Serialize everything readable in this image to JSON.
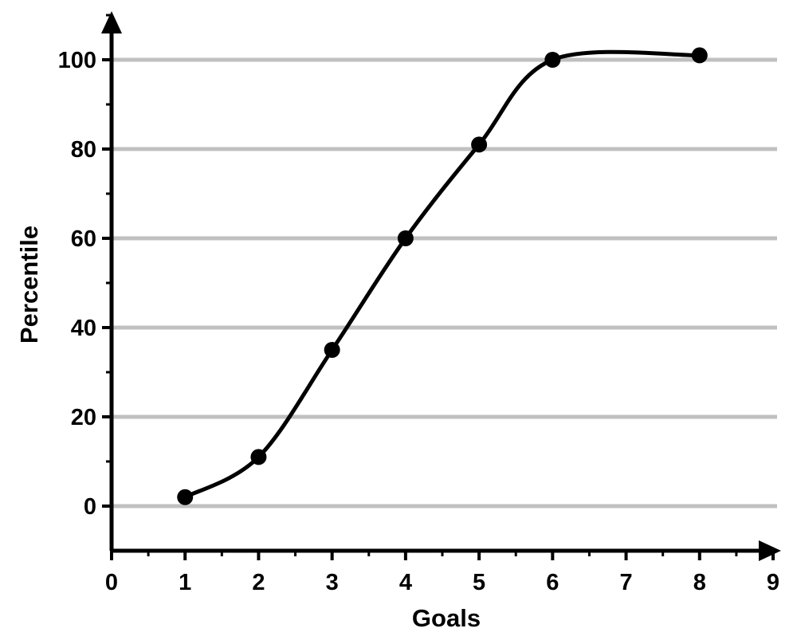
{
  "chart_data": {
    "type": "line",
    "title": "",
    "xlabel": "Goals",
    "ylabel": "Percentile",
    "xlim": [
      0,
      9
    ],
    "ylim": [
      -10,
      110
    ],
    "x_ticks": [
      0,
      1,
      2,
      3,
      4,
      5,
      6,
      7,
      8,
      9
    ],
    "x_tick_labels": [
      "0",
      "1",
      "2",
      "3",
      "4",
      "5",
      "6",
      "7",
      "8",
      "9"
    ],
    "y_ticks": [
      0,
      20,
      40,
      60,
      80,
      100
    ],
    "y_tick_labels": [
      "0",
      "20",
      "40",
      "60",
      "80",
      "100"
    ],
    "grid": "horizontal",
    "legend": "none",
    "smooth": true,
    "series": [
      {
        "x": [
          1,
          2,
          3,
          4,
          5,
          6,
          8
        ],
        "values": [
          2,
          11,
          35,
          60,
          81,
          100,
          101
        ]
      }
    ],
    "colors": {
      "line": "#000000",
      "marker": "#000000",
      "grid": "#c0c0c0",
      "axis": "#000000"
    }
  }
}
